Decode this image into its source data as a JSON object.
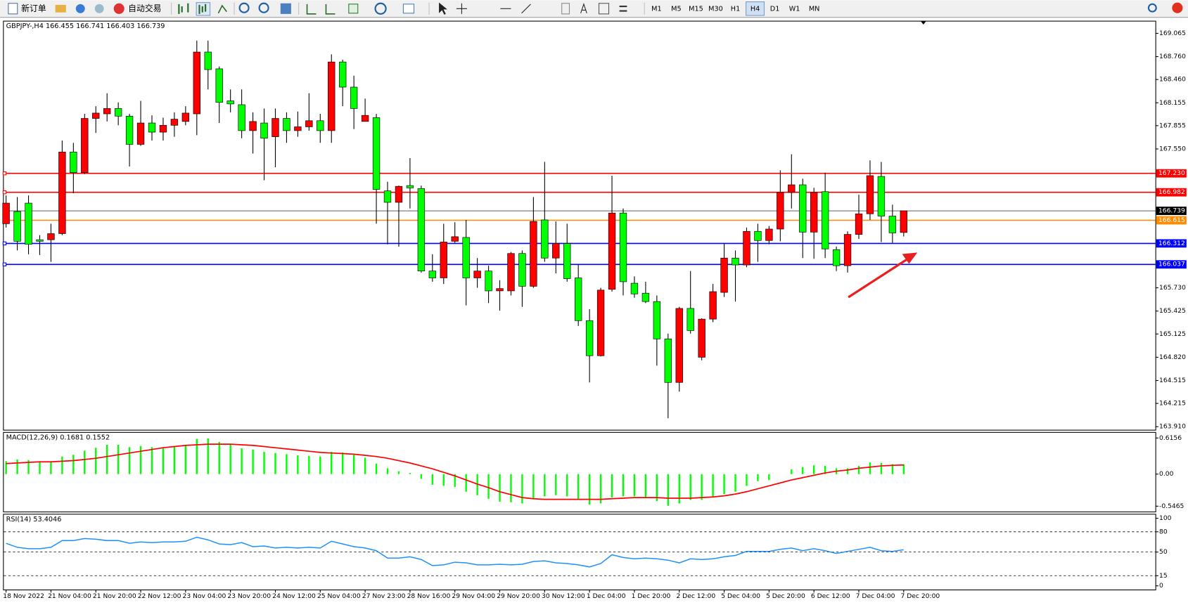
{
  "toolbar": {
    "new_order": "新订单",
    "auto_trading": "自动交易",
    "timeframes": [
      "M1",
      "M5",
      "M15",
      "M30",
      "H1",
      "H4",
      "D1",
      "W1",
      "MN"
    ],
    "active_timeframe": "H4"
  },
  "chart_data": [
    {
      "type": "candlestick",
      "title": "GBPJPY-,H4  166.455 166.741 166.403 166.739",
      "categories": [
        "18 Nov 2022",
        null,
        null,
        null,
        "21 Nov 04:00",
        null,
        null,
        null,
        "21 Nov 20:00",
        null,
        null,
        null,
        "22 Nov 12:00",
        null,
        null,
        null,
        "23 Nov 04:00",
        null,
        null,
        null,
        "23 Nov 20:00",
        null,
        null,
        null,
        "24 Nov 12:00",
        null,
        null,
        null,
        "25 Nov 04:00",
        null,
        null,
        null,
        "27 Nov 23:00",
        null,
        null,
        null,
        "28 Nov 16:00",
        null,
        null,
        null,
        "29 Nov 04:00",
        null,
        null,
        null,
        "29 Nov 20:00",
        null,
        null,
        null,
        "30 Nov 12:00",
        null,
        null,
        null,
        "1 Dec 04:00",
        null,
        null,
        null,
        "1 Dec 20:00",
        null,
        null,
        null,
        "2 Dec 12:00",
        null,
        null,
        null,
        "5 Dec 04:00",
        null,
        null,
        null,
        "5 Dec 20:00",
        null,
        null,
        null,
        "6 Dec 12:00",
        null,
        null,
        null,
        "7 Dec 04:00",
        null,
        null,
        null,
        "7 Dec 20:00"
      ],
      "open": [
        166.57,
        166.73,
        166.84,
        166.36,
        166.36,
        166.44,
        167.51,
        167.24,
        167.95,
        168.01,
        168.08,
        167.98,
        167.61,
        167.89,
        167.77,
        167.86,
        167.91,
        168.01,
        168.82,
        168.6,
        168.18,
        168.13,
        167.79,
        167.89,
        167.71,
        167.95,
        167.79,
        167.84,
        167.92,
        167.79,
        168.69,
        168.36,
        167.91,
        167.96,
        167.0,
        166.85,
        167.07,
        167.03,
        165.95,
        165.86,
        166.34,
        166.39,
        165.86,
        165.95,
        165.69,
        165.69,
        166.18,
        165.75,
        166.62,
        166.12,
        166.31,
        165.86,
        165.3,
        164.84,
        165.71,
        166.71,
        165.79,
        165.66,
        165.55,
        165.06,
        164.49,
        165.46,
        164.82,
        165.32,
        165.67,
        166.12,
        166.03,
        166.47,
        166.35,
        166.5,
        166.98,
        167.08,
        166.46,
        166.99,
        166.23,
        166.02,
        166.43,
        166.7,
        167.19,
        166.67,
        166.455
      ],
      "high": [
        166.94,
        166.92,
        166.94,
        166.42,
        166.57,
        167.66,
        167.63,
        168.01,
        168.11,
        168.28,
        168.16,
        168.01,
        168.18,
        167.99,
        167.96,
        168.03,
        168.11,
        168.97,
        168.97,
        168.63,
        168.33,
        168.33,
        168.03,
        168.08,
        168.08,
        168.03,
        168.04,
        168.28,
        168.01,
        168.79,
        168.72,
        168.51,
        168.21,
        168.01,
        167.12,
        167.07,
        167.43,
        167.07,
        166.17,
        166.57,
        166.59,
        166.62,
        166.12,
        166.02,
        165.83,
        166.2,
        166.22,
        166.92,
        167.38,
        166.6,
        166.57,
        166.04,
        165.45,
        165.73,
        167.2,
        166.77,
        165.88,
        165.81,
        165.63,
        165.13,
        165.48,
        165.95,
        165.33,
        165.78,
        166.32,
        166.22,
        166.52,
        166.57,
        166.54,
        167.27,
        167.48,
        167.16,
        167.04,
        167.24,
        166.27,
        166.47,
        166.95,
        167.4,
        167.38,
        166.82,
        166.741
      ],
      "low": [
        166.52,
        166.22,
        166.17,
        166.16,
        166.07,
        166.42,
        166.97,
        167.22,
        167.76,
        167.91,
        167.86,
        167.32,
        167.59,
        167.66,
        167.66,
        167.71,
        167.86,
        167.73,
        168.33,
        167.89,
        168.03,
        167.69,
        167.49,
        167.14,
        167.31,
        167.63,
        167.71,
        167.79,
        167.63,
        167.63,
        168.11,
        167.81,
        167.91,
        166.57,
        166.3,
        166.27,
        166.77,
        165.93,
        165.81,
        165.78,
        166.32,
        165.5,
        165.73,
        165.53,
        165.43,
        165.63,
        165.48,
        165.73,
        166.07,
        165.92,
        165.81,
        165.23,
        164.49,
        164.83,
        165.68,
        165.63,
        165.6,
        165.53,
        164.71,
        164.02,
        164.37,
        165.13,
        164.78,
        165.28,
        165.61,
        165.55,
        166.0,
        166.07,
        166.3,
        166.34,
        166.77,
        166.12,
        166.11,
        166.12,
        165.95,
        165.93,
        166.37,
        166.62,
        166.33,
        166.32,
        166.403
      ],
      "close": [
        166.84,
        166.34,
        166.3,
        166.34,
        166.44,
        167.51,
        167.24,
        167.95,
        168.02,
        168.08,
        167.98,
        167.61,
        167.89,
        167.77,
        167.86,
        167.94,
        168.02,
        168.82,
        168.59,
        168.16,
        168.14,
        167.79,
        167.91,
        167.69,
        167.95,
        167.79,
        167.84,
        167.92,
        167.79,
        168.69,
        168.36,
        168.08,
        167.99,
        167.02,
        166.85,
        167.06,
        167.04,
        165.95,
        165.86,
        166.33,
        166.4,
        165.86,
        165.95,
        165.69,
        165.72,
        166.18,
        165.75,
        166.6,
        166.12,
        166.31,
        165.85,
        165.3,
        164.84,
        165.7,
        166.71,
        165.81,
        165.65,
        165.55,
        165.06,
        164.49,
        165.46,
        165.17,
        165.32,
        165.68,
        166.12,
        166.03,
        166.47,
        166.35,
        166.5,
        166.98,
        167.08,
        166.46,
        166.98,
        166.24,
        166.02,
        166.43,
        166.7,
        167.2,
        166.67,
        166.45,
        166.739
      ],
      "up_color": "#ff0000",
      "down_color": "#00ff00",
      "ylim": [
        163.87,
        169.22
      ],
      "yticks": [
        169.065,
        {
          "value": 168.76,
          "label": "168.760"
        },
        {
          "value": 168.46,
          "label": "168.460"
        },
        168.155,
        167.855,
        {
          "value": 167.55,
          "label": "167.550"
        },
        {
          "value": 165.73,
          "label": "165.730"
        },
        165.425,
        165.125,
        {
          "value": 164.82,
          "label": "164.820"
        },
        164.515,
        164.215,
        {
          "value": 163.91,
          "label": "163.910"
        }
      ],
      "levels": [
        {
          "value": 167.23,
          "label": "167.230",
          "color": "#ff0000"
        },
        {
          "value": 166.982,
          "label": "166.982",
          "color": "#ff0000"
        },
        {
          "value": 166.739,
          "label": "166.739",
          "color": "#000000"
        },
        {
          "value": 166.615,
          "label": "166.615",
          "color": "#ff8c00"
        },
        {
          "value": 166.312,
          "label": "166.312",
          "color": "#0000ff"
        },
        {
          "value": 166.037,
          "label": "166.037",
          "color": "#0000ff"
        }
      ],
      "grid": false
    },
    {
      "type": "macd",
      "title": "MACD(12,26,9) 0.1681 0.1552",
      "series": [
        {
          "style": "bar",
          "color": "#00ff00",
          "values": [
            0.22,
            0.25,
            0.24,
            0.22,
            0.22,
            0.3,
            0.33,
            0.4,
            0.45,
            0.5,
            0.5,
            0.46,
            0.48,
            0.46,
            0.46,
            0.48,
            0.5,
            0.6,
            0.61,
            0.55,
            0.5,
            0.44,
            0.42,
            0.38,
            0.36,
            0.34,
            0.32,
            0.31,
            0.3,
            0.38,
            0.37,
            0.33,
            0.28,
            0.18,
            0.1,
            0.05,
            0.02,
            -0.08,
            -0.18,
            -0.2,
            -0.22,
            -0.3,
            -0.36,
            -0.42,
            -0.47,
            -0.48,
            -0.5,
            -0.42,
            -0.38,
            -0.36,
            -0.38,
            -0.44,
            -0.52,
            -0.5,
            -0.4,
            -0.38,
            -0.38,
            -0.4,
            -0.46,
            -0.54,
            -0.5,
            -0.44,
            -0.44,
            -0.4,
            -0.34,
            -0.3,
            -0.2,
            -0.12,
            -0.1,
            0.0,
            0.08,
            0.12,
            0.15,
            0.14,
            0.1,
            0.1,
            0.14,
            0.2,
            0.19,
            0.17,
            0.1681
          ]
        },
        {
          "style": "line",
          "color": "#ff0000",
          "values": [
            0.18,
            0.19,
            0.2,
            0.21,
            0.21,
            0.22,
            0.23,
            0.25,
            0.27,
            0.3,
            0.33,
            0.36,
            0.39,
            0.42,
            0.45,
            0.47,
            0.49,
            0.5,
            0.51,
            0.51,
            0.51,
            0.5,
            0.49,
            0.47,
            0.45,
            0.43,
            0.41,
            0.39,
            0.37,
            0.36,
            0.35,
            0.34,
            0.32,
            0.3,
            0.27,
            0.23,
            0.19,
            0.14,
            0.09,
            0.03,
            -0.03,
            -0.1,
            -0.17,
            -0.23,
            -0.3,
            -0.35,
            -0.4,
            -0.42,
            -0.43,
            -0.43,
            -0.43,
            -0.43,
            -0.43,
            -0.43,
            -0.42,
            -0.41,
            -0.4,
            -0.4,
            -0.4,
            -0.41,
            -0.41,
            -0.41,
            -0.4,
            -0.39,
            -0.37,
            -0.34,
            -0.3,
            -0.25,
            -0.2,
            -0.15,
            -0.1,
            -0.06,
            -0.02,
            0.02,
            0.05,
            0.07,
            0.1,
            0.12,
            0.14,
            0.15,
            0.1552
          ]
        }
      ],
      "ylim": [
        -0.638,
        0.705
      ],
      "yticks": [
        0.6156,
        {
          "value": 0,
          "label": "0.00"
        },
        -0.5465
      ]
    },
    {
      "type": "line",
      "title": "RSI(14) 53.4046",
      "series": [
        {
          "style": "line",
          "color": "#1e90ff",
          "values": [
            63,
            57,
            55,
            55,
            57,
            67,
            67,
            70,
            69,
            67,
            67,
            63,
            65,
            64,
            65,
            65,
            66,
            72,
            68,
            62,
            61,
            64,
            58,
            59,
            56,
            57,
            56,
            57,
            56,
            66,
            62,
            58,
            56,
            52,
            41,
            41,
            43,
            39,
            30,
            31,
            35,
            34,
            31,
            31,
            32,
            31,
            32,
            36,
            37,
            34,
            33,
            31,
            28,
            33,
            46,
            42,
            40,
            41,
            40,
            38,
            34,
            40,
            39,
            40,
            43,
            45,
            51,
            51,
            51,
            54,
            56,
            52,
            55,
            52,
            48,
            51,
            54,
            57,
            52,
            51,
            53.4046
          ]
        }
      ],
      "ylim": [
        -5.5,
        105.5
      ],
      "yticks": [
        100,
        80,
        50,
        15,
        0
      ],
      "levels": [
        80,
        50,
        15
      ]
    }
  ]
}
